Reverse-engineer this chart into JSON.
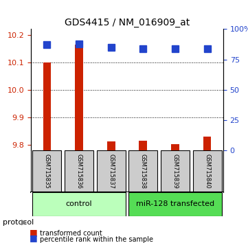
{
  "title": "GDS4415 / NM_016909_at",
  "samples": [
    "GSM715835",
    "GSM715836",
    "GSM715837",
    "GSM715838",
    "GSM715839",
    "GSM715840"
  ],
  "red_values": [
    10.1,
    10.165,
    9.813,
    9.815,
    9.803,
    9.83
  ],
  "blue_values": [
    87,
    88,
    85,
    84,
    84,
    84
  ],
  "ylim_left": [
    9.78,
    10.22
  ],
  "ylim_right": [
    0,
    100
  ],
  "yticks_left": [
    9.8,
    9.9,
    10.0,
    10.1,
    10.2
  ],
  "yticks_right": [
    0,
    25,
    50,
    75,
    100
  ],
  "ytick_labels_right": [
    "0",
    "25",
    "50",
    "75",
    "100%"
  ],
  "grid_lines": [
    9.9,
    10.0,
    10.1
  ],
  "bar_width": 0.35,
  "red_color": "#cc2200",
  "blue_color": "#2244cc",
  "protocol_groups": [
    {
      "label": "control",
      "samples": [
        0,
        1,
        2
      ],
      "color": "#aaffaa"
    },
    {
      "label": "miR-128 transfected",
      "samples": [
        3,
        4,
        5
      ],
      "color": "#55ee55"
    }
  ],
  "protocol_label": "protocol",
  "legend_items": [
    {
      "color": "#cc2200",
      "label": "transformed count"
    },
    {
      "color": "#2244cc",
      "label": "percentile rank within the sample"
    }
  ],
  "base_value": 9.78
}
